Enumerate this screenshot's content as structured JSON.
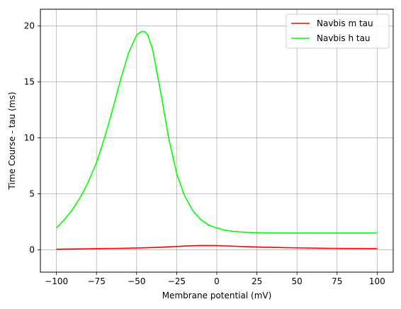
{
  "chart_data": {
    "type": "line",
    "title": "",
    "xlabel": "Membrane potential (mV)",
    "ylabel": "Time Course - tau (ms)",
    "xlim": [
      -110,
      110
    ],
    "ylim": [
      -2,
      21.5
    ],
    "xticks": [
      -100,
      -75,
      -50,
      -25,
      0,
      25,
      50,
      75,
      100
    ],
    "yticks": [
      0,
      5,
      10,
      15,
      20
    ],
    "grid": true,
    "legend_position": "top-right",
    "series": [
      {
        "name": "Navbis m tau",
        "color": "#ff0000",
        "x": [
          -100,
          -90,
          -80,
          -70,
          -60,
          -50,
          -40,
          -30,
          -20,
          -10,
          0,
          10,
          20,
          30,
          40,
          50,
          60,
          70,
          80,
          90,
          100
        ],
        "y": [
          0.05,
          0.07,
          0.09,
          0.11,
          0.13,
          0.16,
          0.2,
          0.26,
          0.33,
          0.38,
          0.37,
          0.32,
          0.27,
          0.23,
          0.2,
          0.17,
          0.15,
          0.13,
          0.12,
          0.11,
          0.1
        ]
      },
      {
        "name": "Navbis h tau",
        "color": "#00ff00",
        "x": [
          -100,
          -95,
          -90,
          -85,
          -80,
          -75,
          -70,
          -65,
          -60,
          -55,
          -50,
          -47,
          -45,
          -43,
          -40,
          -35,
          -30,
          -25,
          -20,
          -15,
          -10,
          -5,
          0,
          5,
          10,
          15,
          20,
          25,
          30,
          40,
          50,
          60,
          70,
          80,
          90,
          100
        ],
        "y": [
          1.95,
          2.7,
          3.6,
          4.7,
          6.1,
          7.8,
          10.0,
          12.5,
          15.2,
          17.6,
          19.2,
          19.5,
          19.5,
          19.2,
          17.9,
          14.1,
          10.0,
          6.8,
          4.8,
          3.5,
          2.7,
          2.2,
          1.95,
          1.75,
          1.65,
          1.58,
          1.55,
          1.53,
          1.52,
          1.5,
          1.5,
          1.5,
          1.5,
          1.5,
          1.5,
          1.5
        ]
      }
    ]
  }
}
